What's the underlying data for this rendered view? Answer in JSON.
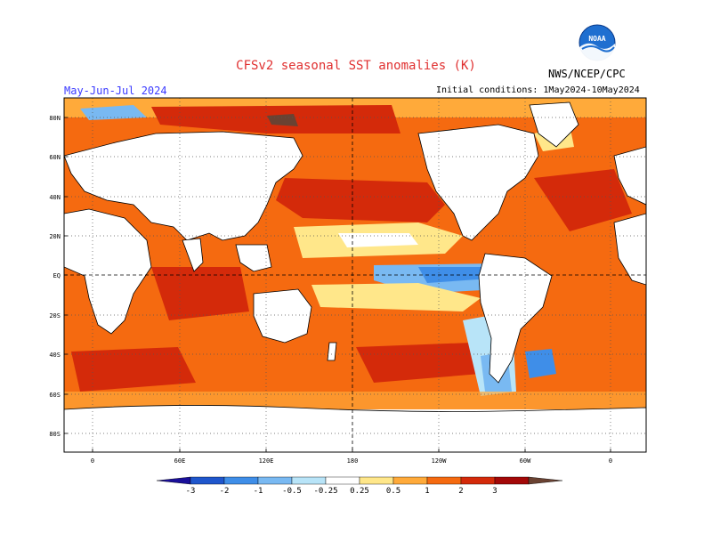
{
  "header": {
    "title": "CFSv2 seasonal SST anomalies (K)",
    "season": "May-Jun-Jul 2024",
    "initial_conditions": "Initial conditions: 1May2024-10May2024",
    "agency": "NWS/NCEP/CPC",
    "logo_text": "NOAA"
  },
  "map": {
    "lat_labels": [
      "80N",
      "60N",
      "40N",
      "20N",
      "EQ",
      "20S",
      "40S",
      "60S",
      "80S"
    ],
    "lon_labels": [
      "0",
      "60E",
      "120E",
      "180",
      "120W",
      "60W",
      "0"
    ]
  },
  "colorbar": {
    "labels": [
      "-3",
      "-2",
      "-1",
      "-0.5",
      "-0.25",
      "0.25",
      "0.5",
      "1",
      "2",
      "3"
    ],
    "colors": [
      "#1a0f9a",
      "#1f56cc",
      "#3f8ee8",
      "#79b9f2",
      "#b8e4f8",
      "#ffffff",
      "#ffe78a",
      "#ffaa3a",
      "#f56a10",
      "#d42a0a",
      "#a30808",
      "#6a4232"
    ]
  },
  "colors": {
    "land": "#ffffff",
    "coast": "#000000",
    "grid": "#555555"
  }
}
